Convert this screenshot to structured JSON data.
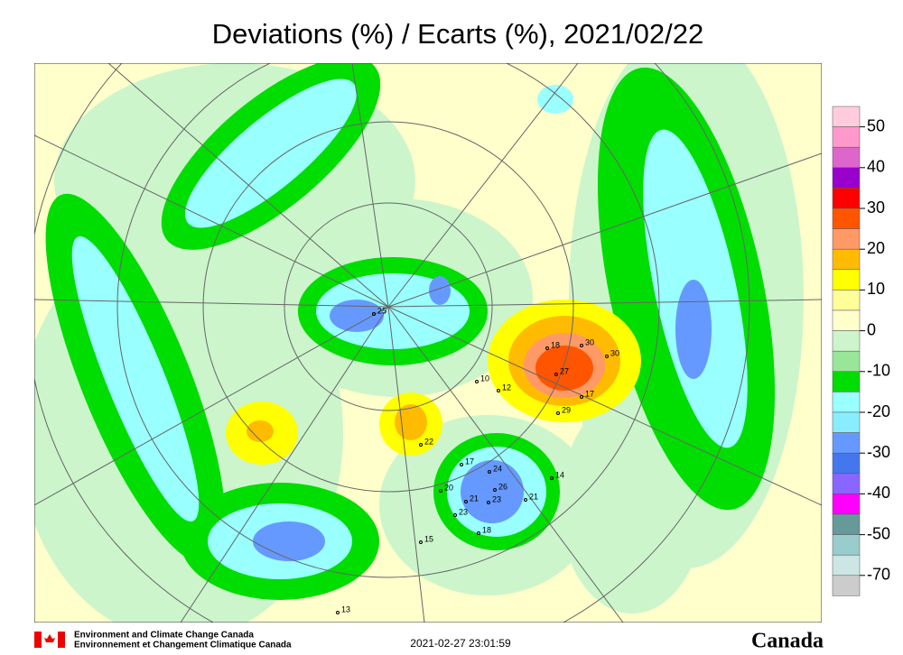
{
  "title": "Deviations (%) / Ecarts (%), 2021/02/22",
  "legend": {
    "ticks": [
      50,
      40,
      30,
      20,
      10,
      0,
      -10,
      -20,
      -30,
      -40,
      -50,
      -70
    ],
    "colors": [
      "#ffccdd",
      "#ff99cc",
      "#dd66cc",
      "#9900cc",
      "#ff0000",
      "#ff5500",
      "#ff9966",
      "#ffbb00",
      "#ffff00",
      "#ffff99",
      "#ffffcc",
      "#ccf5cc",
      "#99e699",
      "#00dd00",
      "#99ffff",
      "#88eeff",
      "#6699ff",
      "#4477ee",
      "#8866ff",
      "#ff00ff",
      "#669999",
      "#99cccc",
      "#cce5e5",
      "#cccccc"
    ]
  },
  "stations": [
    25,
    27,
    30,
    18,
    30,
    17,
    29,
    22,
    24,
    26,
    23,
    21,
    14,
    18,
    23,
    21,
    20,
    17,
    13,
    10,
    15,
    12
  ],
  "footer": {
    "agency_en": "Environment and Climate Change Canada",
    "agency_fr": "Environnement et Changement Climatique Canada",
    "timestamp": "2021-02-27 23:01:59",
    "wordmark": "Canada"
  }
}
